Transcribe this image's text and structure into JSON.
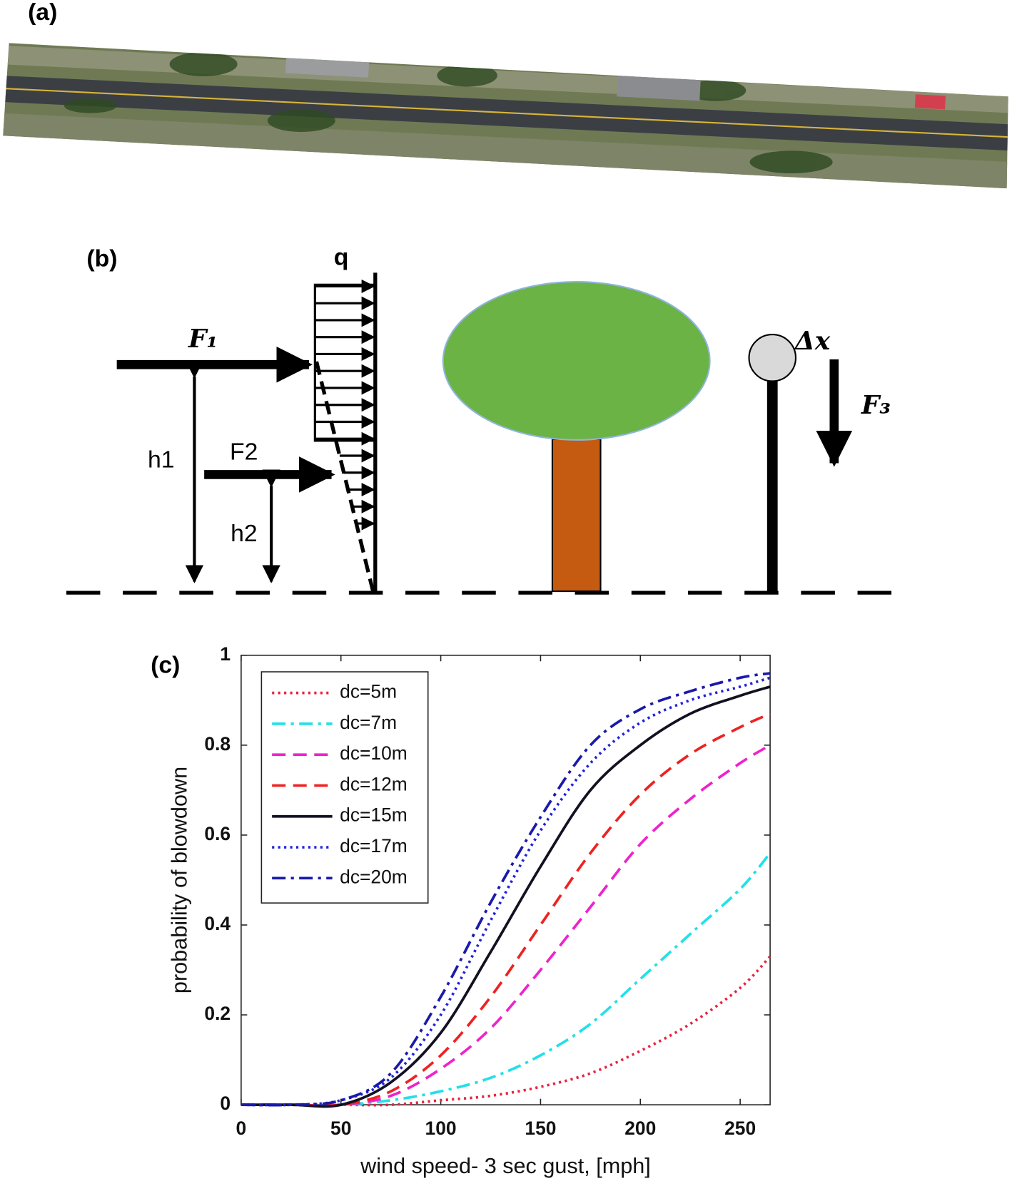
{
  "panels": [
    "(a)",
    "(b)",
    "(c)"
  ],
  "diagram": {
    "q": "q",
    "F1": "F₁",
    "F2": "F2",
    "h1": "h1",
    "h2": "h2",
    "dx": "Δx",
    "F3": "F₃"
  },
  "chart_data": {
    "type": "line",
    "xlabel": "wind speed- 3 sec gust, [mph]",
    "ylabel": "probability of blowdown",
    "x": [
      0,
      25,
      50,
      75,
      100,
      125,
      150,
      175,
      200,
      225,
      250,
      265
    ],
    "xlim": [
      0,
      265
    ],
    "ylim": [
      0,
      1
    ],
    "xticks": [
      0,
      50,
      100,
      150,
      200,
      250
    ],
    "yticks": [
      0,
      0.2,
      0.4,
      0.6,
      0.8,
      1
    ],
    "legend": "upper left",
    "series": [
      {
        "name": "dc=5m",
        "color": "#e8233f",
        "linestyle": "dotted",
        "values": [
          0,
          0,
          0,
          0,
          0.01,
          0.02,
          0.04,
          0.07,
          0.12,
          0.18,
          0.26,
          0.33
        ]
      },
      {
        "name": "dc=7m",
        "color": "#22e0e8",
        "linestyle": "dashdot",
        "values": [
          0,
          0,
          0,
          0.01,
          0.03,
          0.06,
          0.11,
          0.18,
          0.28,
          0.38,
          0.48,
          0.56
        ]
      },
      {
        "name": "dc=10m",
        "color": "#ee22cc",
        "linestyle": "dashed",
        "values": [
          0,
          0,
          0,
          0.02,
          0.08,
          0.17,
          0.3,
          0.44,
          0.58,
          0.68,
          0.76,
          0.8
        ]
      },
      {
        "name": "dc=12m",
        "color": "#ee2222",
        "linestyle": "dashed",
        "values": [
          0,
          0,
          0,
          0.03,
          0.11,
          0.24,
          0.4,
          0.56,
          0.69,
          0.78,
          0.84,
          0.87
        ]
      },
      {
        "name": "dc=15m",
        "color": "#111122",
        "linestyle": "solid",
        "values": [
          0,
          0,
          0,
          0.05,
          0.16,
          0.34,
          0.53,
          0.7,
          0.8,
          0.87,
          0.91,
          0.93
        ]
      },
      {
        "name": "dc=17m",
        "color": "#2222dd",
        "linestyle": "dotted",
        "values": [
          0,
          0,
          0.01,
          0.06,
          0.2,
          0.41,
          0.61,
          0.76,
          0.85,
          0.9,
          0.93,
          0.95
        ]
      },
      {
        "name": "dc=20m",
        "color": "#1a1aaa",
        "linestyle": "dashdot",
        "values": [
          0,
          0,
          0.01,
          0.07,
          0.24,
          0.45,
          0.64,
          0.8,
          0.88,
          0.92,
          0.95,
          0.96
        ]
      }
    ]
  }
}
